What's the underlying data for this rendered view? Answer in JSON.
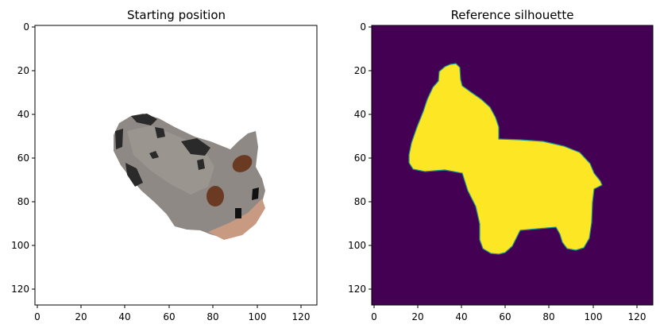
{
  "panels": [
    {
      "title": "Starting position",
      "x_ticks": [
        "0",
        "20",
        "40",
        "60",
        "80",
        "100",
        "120"
      ],
      "y_ticks": [
        "0",
        "20",
        "40",
        "60",
        "80",
        "100",
        "120"
      ]
    },
    {
      "title": "Reference silhouette",
      "x_ticks": [
        "0",
        "20",
        "40",
        "60",
        "80",
        "100",
        "120"
      ],
      "y_ticks": [
        "0",
        "20",
        "40",
        "60",
        "80",
        "100",
        "120"
      ]
    }
  ],
  "colors": {
    "silhouette_background": "#440154",
    "silhouette_foreground": "#fde725",
    "silhouette_edge": "#21918c",
    "render_background": "#ffffff",
    "cow_body": "#8f8985",
    "cow_spot": "#2a2a2a",
    "cow_ear_spot": "#6b3a22",
    "cow_muzzle": "#c89a82"
  }
}
